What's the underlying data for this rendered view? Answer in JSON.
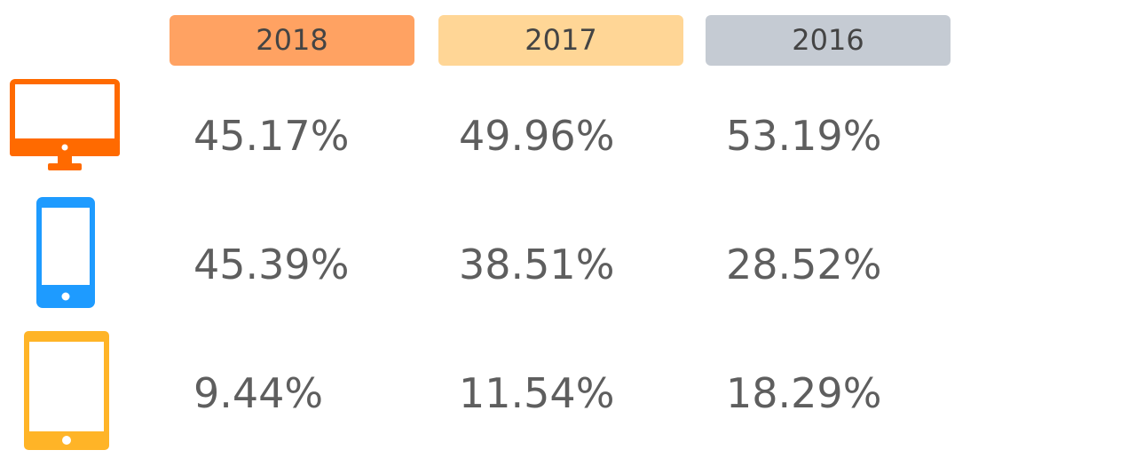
{
  "table": {
    "header": [
      "2018",
      "2017",
      "2016"
    ],
    "rows": [
      [
        "45.17%",
        "49.96%",
        "53.19%"
      ],
      [
        "45.39%",
        "38.51%",
        "28.52%"
      ],
      [
        "9.44%",
        "11.54%",
        "18.29%"
      ]
    ]
  }
}
